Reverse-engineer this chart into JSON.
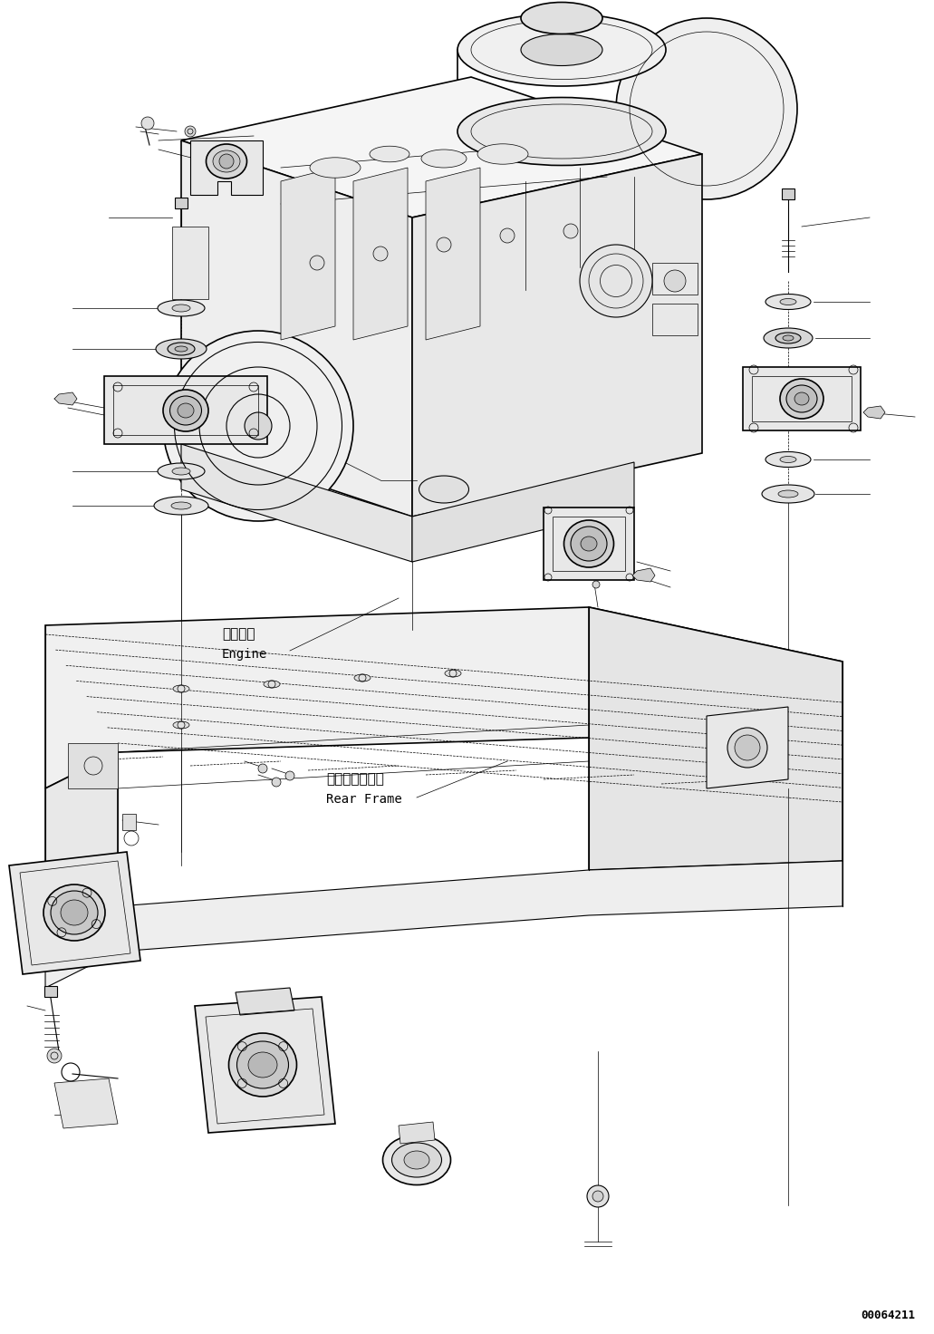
{
  "background_color": "#ffffff",
  "line_color": "#000000",
  "text_color": "#000000",
  "diagram_id": "00064211",
  "labels": {
    "engine_jp": "エンジン",
    "engine_en": "Engine",
    "rear_frame_jp": "リヤーフレーム",
    "rear_frame_en": "Rear Frame"
  },
  "figsize": [
    10.31,
    14.72
  ],
  "dpi": 100
}
